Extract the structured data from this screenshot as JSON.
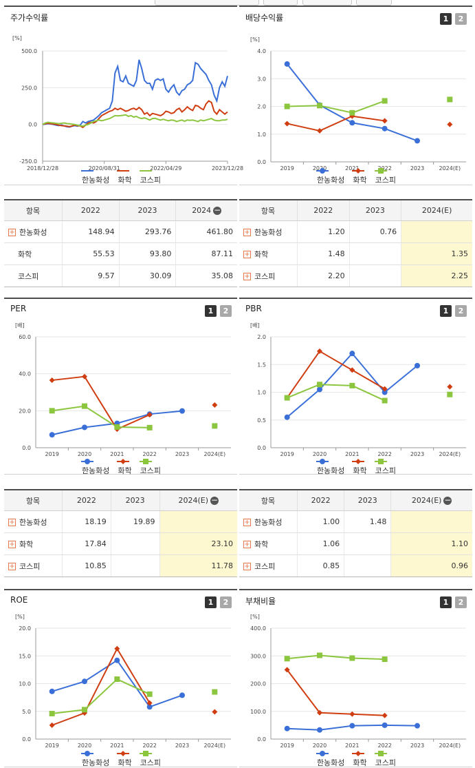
{
  "colors": {
    "blue": "#3a6fd8",
    "red": "#cf3d10",
    "green": "#8cc63f"
  },
  "legend": [
    "한농화성",
    "화학",
    "코스피"
  ],
  "panels": {
    "p1": {
      "title": "주가수익률"
    },
    "p2": {
      "title": "배당수익률",
      "btn1": "1",
      "btn2": "2"
    },
    "p3": {
      "title": "PER",
      "btn1": "1",
      "btn2": "2"
    },
    "p4": {
      "title": "PBR",
      "btn1": "1",
      "btn2": "2"
    },
    "p5": {
      "title": "ROE",
      "btn1": "1",
      "btn2": "2"
    },
    "p6": {
      "title": "부채비율",
      "btn1": "1",
      "btn2": "2"
    }
  },
  "tables": {
    "t1": {
      "headers": [
        "항목",
        "2022",
        "2023",
        "2024"
      ],
      "header_minus": true,
      "est_col": false,
      "rows": [
        {
          "label": "한농화성",
          "plus": true,
          "v": [
            "148.94",
            "293.76",
            "461.80"
          ]
        },
        {
          "label": "화학",
          "plus": false,
          "v": [
            "55.53",
            "93.80",
            "87.11"
          ]
        },
        {
          "label": "코스피",
          "plus": false,
          "v": [
            "9.57",
            "30.09",
            "35.08"
          ]
        }
      ]
    },
    "t2": {
      "headers": [
        "항목",
        "2022",
        "2023",
        "2024(E)"
      ],
      "header_minus": false,
      "est_col": true,
      "rows": [
        {
          "label": "한농화성",
          "plus": true,
          "v": [
            "1.20",
            "0.76",
            ""
          ]
        },
        {
          "label": "화학",
          "plus": true,
          "v": [
            "1.48",
            "",
            "1.35"
          ]
        },
        {
          "label": "코스피",
          "plus": true,
          "v": [
            "2.20",
            "",
            "2.25"
          ]
        }
      ]
    },
    "t3": {
      "headers": [
        "항목",
        "2022",
        "2023",
        "2024(E)"
      ],
      "header_minus": true,
      "est_col": true,
      "rows": [
        {
          "label": "한농화성",
          "plus": true,
          "v": [
            "18.19",
            "19.89",
            ""
          ]
        },
        {
          "label": "화학",
          "plus": true,
          "v": [
            "17.84",
            "",
            "23.10"
          ]
        },
        {
          "label": "코스피",
          "plus": true,
          "v": [
            "10.85",
            "",
            "11.78"
          ]
        }
      ]
    },
    "t4": {
      "headers": [
        "항목",
        "2022",
        "2023",
        "2024(E)"
      ],
      "header_minus": true,
      "est_col": true,
      "rows": [
        {
          "label": "한농화성",
          "plus": true,
          "v": [
            "1.00",
            "1.48",
            ""
          ]
        },
        {
          "label": "화학",
          "plus": true,
          "v": [
            "1.06",
            "",
            "1.10"
          ]
        },
        {
          "label": "코스피",
          "plus": true,
          "v": [
            "0.85",
            "",
            "0.96"
          ]
        }
      ]
    }
  },
  "chart_data": [
    {
      "id": "c1",
      "type": "line",
      "ylabel": "[%]",
      "ylim": [
        -250,
        500
      ],
      "yticks": [
        "500.0",
        "250.0",
        "0.0",
        "-250.0"
      ],
      "xticks": [
        "2018/12/28",
        "2020/08/31",
        "2022/04/29",
        "2023/12/28"
      ],
      "series": [
        {
          "name": "한농화성",
          "color": "blue",
          "values": [
            0,
            2,
            5,
            3,
            0,
            -5,
            -8,
            -3,
            -10,
            -15,
            -18,
            -12,
            -8,
            -12,
            -5,
            20,
            10,
            20,
            25,
            30,
            45,
            60,
            80,
            90,
            100,
            110,
            160,
            350,
            395,
            300,
            290,
            330,
            280,
            270,
            260,
            300,
            440,
            380,
            300,
            280,
            280,
            240,
            300,
            310,
            300,
            310,
            240,
            220,
            250,
            270,
            220,
            200,
            230,
            240,
            270,
            280,
            300,
            420,
            410,
            380,
            360,
            340,
            300,
            270,
            200,
            160,
            250,
            290,
            260,
            330
          ]
        },
        {
          "name": "화학",
          "color": "red",
          "values": [
            0,
            5,
            8,
            5,
            3,
            0,
            -5,
            -8,
            -10,
            -12,
            -15,
            -10,
            -5,
            -8,
            -10,
            -20,
            -5,
            10,
            15,
            10,
            20,
            40,
            60,
            70,
            80,
            90,
            95,
            110,
            100,
            110,
            100,
            90,
            95,
            105,
            110,
            100,
            115,
            100,
            70,
            80,
            60,
            75,
            70,
            65,
            60,
            70,
            90,
            85,
            75,
            80,
            100,
            110,
            85,
            100,
            120,
            105,
            95,
            130,
            125,
            110,
            100,
            140,
            160,
            150,
            90,
            70,
            100,
            85,
            70,
            85
          ]
        },
        {
          "name": "코스피",
          "color": "green",
          "values": [
            0,
            10,
            15,
            12,
            10,
            8,
            5,
            8,
            10,
            6,
            5,
            2,
            0,
            -5,
            -8,
            -12,
            -5,
            0,
            10,
            20,
            25,
            30,
            25,
            30,
            35,
            40,
            50,
            60,
            58,
            60,
            62,
            65,
            55,
            60,
            50,
            55,
            45,
            40,
            45,
            38,
            30,
            40,
            42,
            35,
            30,
            35,
            30,
            25,
            30,
            28,
            20,
            25,
            30,
            22,
            30,
            28,
            30,
            25,
            20,
            30,
            25,
            30,
            35,
            40,
            30,
            25,
            25,
            30,
            30,
            35
          ]
        }
      ]
    },
    {
      "id": "c2",
      "type": "line",
      "ylabel": "[%]",
      "ylim": [
        0,
        4
      ],
      "yticks": [
        "4.0",
        "3.0",
        "2.0",
        "1.0",
        "0.0"
      ],
      "categories": [
        "2019",
        "2020",
        "2021",
        "2022",
        "2023",
        "2024(E)"
      ],
      "series": [
        {
          "name": "한농화성",
          "color": "blue",
          "marker": "circle",
          "values": [
            3.53,
            2.05,
            1.41,
            1.2,
            0.76,
            null
          ]
        },
        {
          "name": "화학",
          "color": "red",
          "marker": "diamond",
          "values": [
            1.38,
            1.12,
            1.65,
            1.48,
            null,
            1.35
          ]
        },
        {
          "name": "코스피",
          "color": "green",
          "marker": "square",
          "values": [
            2.0,
            2.03,
            1.77,
            2.2,
            null,
            2.25
          ]
        }
      ]
    },
    {
      "id": "c3",
      "type": "line",
      "ylabel": "[배]",
      "ylim": [
        0,
        60
      ],
      "yticks": [
        "60.0",
        "40.0",
        "20.0",
        "0.0"
      ],
      "categories": [
        "2019",
        "2020",
        "2021",
        "2022",
        "2023",
        "2024(E)"
      ],
      "series": [
        {
          "name": "한농화성",
          "color": "blue",
          "marker": "circle",
          "values": [
            7.0,
            11.0,
            13.2,
            18.19,
            19.89,
            null
          ]
        },
        {
          "name": "화학",
          "color": "red",
          "marker": "diamond",
          "values": [
            36.5,
            38.5,
            10.0,
            17.84,
            null,
            23.1
          ]
        },
        {
          "name": "코스피",
          "color": "green",
          "marker": "square",
          "values": [
            20.0,
            22.5,
            11.2,
            10.85,
            null,
            11.78
          ]
        }
      ]
    },
    {
      "id": "c4",
      "type": "line",
      "ylabel": "[배]",
      "ylim": [
        0,
        2
      ],
      "yticks": [
        "2.0",
        "1.5",
        "1.0",
        "0.5",
        "0.0"
      ],
      "categories": [
        "2019",
        "2020",
        "2021",
        "2022",
        "2023",
        "2024(E)"
      ],
      "series": [
        {
          "name": "한농화성",
          "color": "blue",
          "marker": "circle",
          "values": [
            0.55,
            1.05,
            1.7,
            1.0,
            1.48,
            null
          ]
        },
        {
          "name": "화학",
          "color": "red",
          "marker": "diamond",
          "values": [
            0.9,
            1.74,
            1.4,
            1.06,
            null,
            1.1
          ]
        },
        {
          "name": "코스피",
          "color": "green",
          "marker": "square",
          "values": [
            0.9,
            1.14,
            1.12,
            0.85,
            null,
            0.96
          ]
        }
      ]
    },
    {
      "id": "c5",
      "type": "line",
      "ylabel": "[%]",
      "ylim": [
        0,
        20
      ],
      "yticks": [
        "20.0",
        "15.0",
        "10.0",
        "5.0",
        "0.0"
      ],
      "categories": [
        "2019",
        "2020",
        "2021",
        "2022",
        "2023",
        "2024(E)"
      ],
      "series": [
        {
          "name": "한농화성",
          "color": "blue",
          "marker": "circle",
          "values": [
            8.6,
            10.4,
            14.2,
            5.8,
            7.9,
            null
          ]
        },
        {
          "name": "화학",
          "color": "red",
          "marker": "diamond",
          "values": [
            2.5,
            4.7,
            16.3,
            6.5,
            null,
            4.9
          ]
        },
        {
          "name": "코스피",
          "color": "green",
          "marker": "square",
          "values": [
            4.6,
            5.3,
            10.8,
            8.1,
            null,
            8.5
          ]
        }
      ]
    },
    {
      "id": "c6",
      "type": "line",
      "ylabel": "[%]",
      "ylim": [
        0,
        400
      ],
      "yticks": [
        "400.0",
        "300.0",
        "200.0",
        "100.0",
        "0.0"
      ],
      "categories": [
        "2019",
        "2020",
        "2021",
        "2022",
        "2023",
        "2024(E)"
      ],
      "series": [
        {
          "name": "한농화성",
          "color": "blue",
          "marker": "circle",
          "values": [
            38,
            33,
            48,
            50,
            48,
            null
          ]
        },
        {
          "name": "화학",
          "color": "red",
          "marker": "diamond",
          "values": [
            250,
            95,
            90,
            85,
            null,
            null
          ]
        },
        {
          "name": "코스피",
          "color": "green",
          "marker": "square",
          "values": [
            290,
            302,
            292,
            288,
            null,
            null
          ]
        }
      ]
    }
  ]
}
